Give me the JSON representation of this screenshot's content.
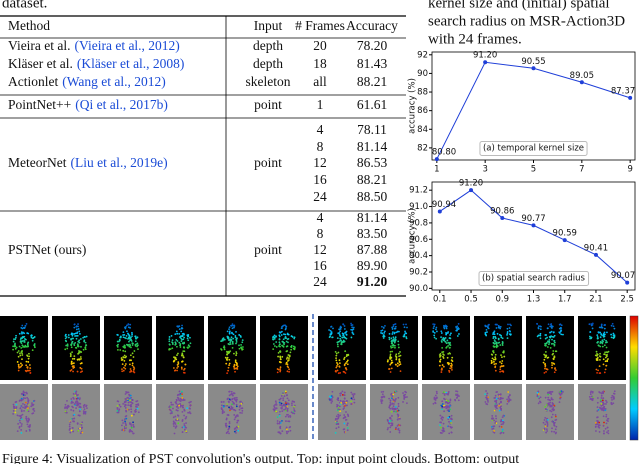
{
  "top_text": "dataset.",
  "side_caption": [
    "kernel size and (initial) spatial",
    "search radius on MSR-Action3D",
    "with 24 frames."
  ],
  "table": {
    "header": [
      "Method",
      "Input",
      "# Frames",
      "Accuracy"
    ],
    "sections": [
      {
        "rows": [
          {
            "method": "Vieira et al.",
            "cite": "(Vieira et al., 2012)",
            "input": "depth",
            "frames": "20",
            "accuracy": "78.20"
          },
          {
            "method": "Kläser et al.",
            "cite": "(Kläser et al., 2008)",
            "input": "depth",
            "frames": "18",
            "accuracy": "81.43"
          },
          {
            "method": "Actionlet",
            "cite": "(Wang et al., 2012)",
            "input": "skeleton",
            "frames": "all",
            "accuracy": "88.21"
          }
        ]
      },
      {
        "rows": [
          {
            "method": "PointNet++",
            "cite": "(Qi et al., 2017b)",
            "input": "point",
            "frames": "1",
            "accuracy": "61.61"
          }
        ]
      },
      {
        "method": "MeteorNet",
        "cite": "(Liu et al., 2019e)",
        "input": "point",
        "rows": [
          {
            "frames": "4",
            "accuracy": "78.11"
          },
          {
            "frames": "8",
            "accuracy": "81.14"
          },
          {
            "frames": "12",
            "accuracy": "86.53"
          },
          {
            "frames": "16",
            "accuracy": "88.21"
          },
          {
            "frames": "24",
            "accuracy": "88.50"
          }
        ]
      },
      {
        "method": "PSTNet (ours)",
        "input": "point",
        "rows": [
          {
            "frames": "4",
            "accuracy": "81.14"
          },
          {
            "frames": "8",
            "accuracy": "83.50"
          },
          {
            "frames": "12",
            "accuracy": "87.88"
          },
          {
            "frames": "16",
            "accuracy": "89.90"
          },
          {
            "frames": "24",
            "accuracy": "91.20"
          }
        ]
      }
    ]
  },
  "chart_data": [
    {
      "type": "line",
      "ylabel": "accuracy (%)",
      "annotation": "(a) temporal kernel size",
      "color": "#1f3fd8",
      "x": [
        1,
        3,
        5,
        7,
        9
      ],
      "xticks": [
        1,
        3,
        5,
        7,
        9
      ],
      "xlim": [
        0.8,
        9.2
      ],
      "values": [
        80.8,
        91.2,
        90.55,
        89.05,
        87.37
      ],
      "value_labels": [
        "80.80",
        "91.20",
        "90.55",
        "89.05",
        "87.37"
      ],
      "ylim": [
        80.7,
        92.3
      ],
      "yticks": [
        82,
        84,
        86,
        88,
        90,
        92
      ]
    },
    {
      "type": "line",
      "ylabel": "accuracy (%)",
      "annotation": "(b) spatial search radius",
      "color": "#1f3fd8",
      "x": [
        0.1,
        0.5,
        0.9,
        1.3,
        1.7,
        2.1,
        2.5
      ],
      "xticks": [
        0.1,
        0.5,
        0.9,
        1.3,
        1.7,
        2.1,
        2.5
      ],
      "xlim": [
        0,
        2.6
      ],
      "values": [
        90.94,
        91.2,
        90.86,
        90.77,
        90.59,
        90.41,
        90.07
      ],
      "value_labels": [
        "90.94",
        "91.20",
        "90.86",
        "90.77",
        "90.59",
        "90.41",
        "90.07"
      ],
      "ylim": [
        89.98,
        91.3
      ],
      "yticks": [
        {
          "value": 90,
          "label": "90.0"
        },
        90.2,
        90.4,
        90.6,
        90.8,
        {
          "value": 91,
          "label": "91.0"
        },
        91.2
      ]
    }
  ],
  "figure_caption": "Figure 4: Visualization of PST convolution's output. Top: input point clouds. Bottom: output"
}
